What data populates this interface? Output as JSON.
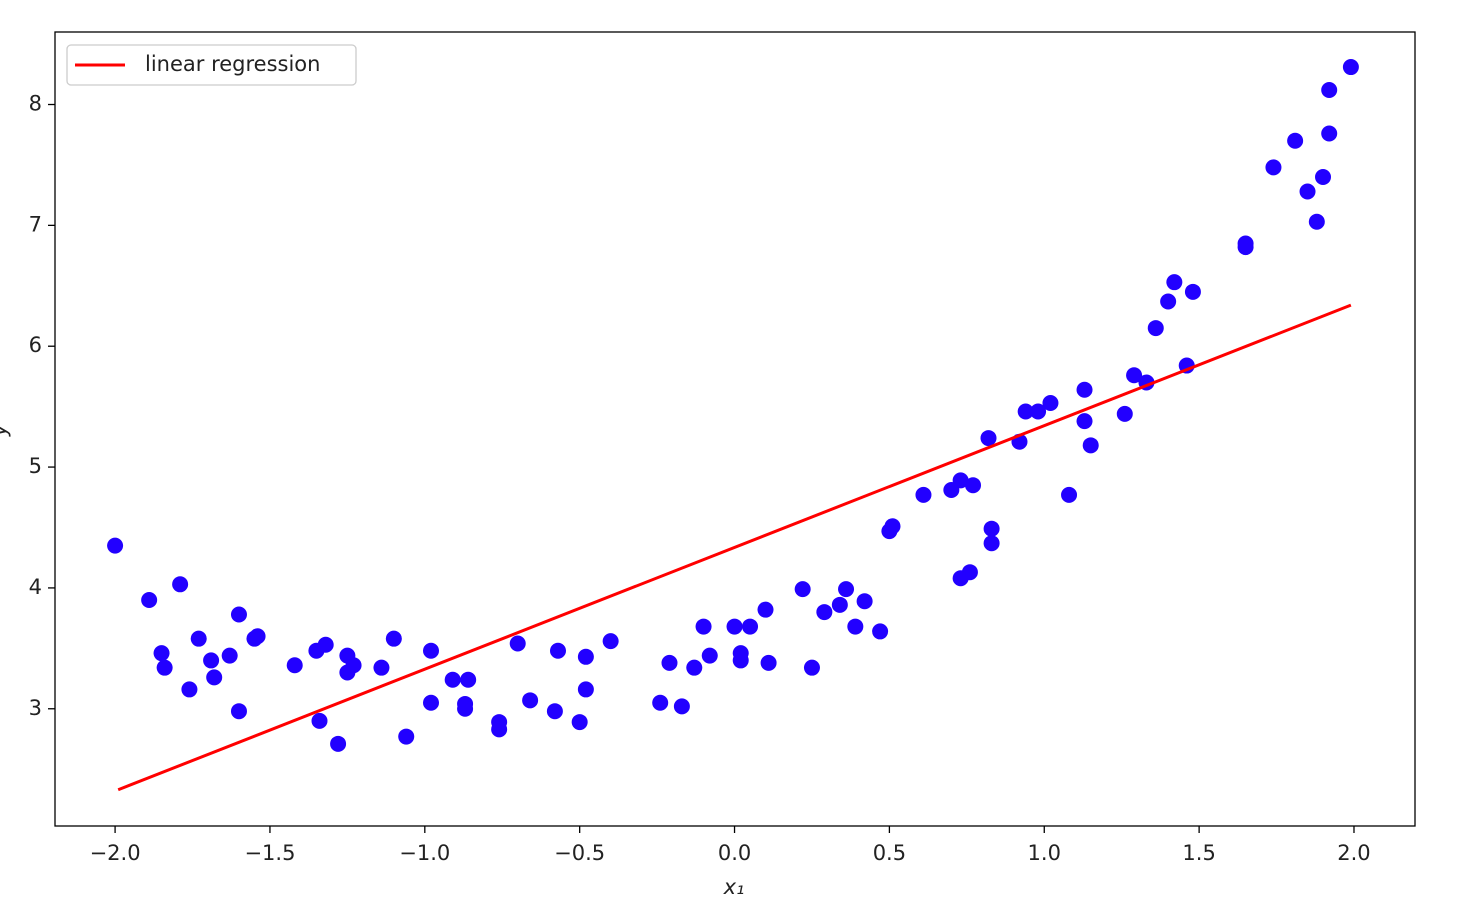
{
  "chart_data": {
    "type": "scatter",
    "xlabel": "x₁",
    "ylabel": "y",
    "xlim": [
      -2.194,
      2.197
    ],
    "ylim": [
      2.03,
      8.6
    ],
    "xticks": [
      {
        "value": -2.0,
        "label": "−2.0"
      },
      {
        "value": -1.5,
        "label": "−1.5"
      },
      {
        "value": -1.0,
        "label": "−1.0"
      },
      {
        "value": -0.5,
        "label": "−0.5"
      },
      {
        "value": 0.0,
        "label": "0.0"
      },
      {
        "value": 0.5,
        "label": "0.5"
      },
      {
        "value": 1.0,
        "label": "1.0"
      },
      {
        "value": 1.5,
        "label": "1.5"
      },
      {
        "value": 2.0,
        "label": "2.0"
      }
    ],
    "yticks": [
      3,
      4,
      5,
      6,
      7,
      8
    ],
    "legend": "upper left",
    "series": [
      {
        "name": "linear regression",
        "type": "line",
        "color": "#ff0000",
        "x": [
          -1.99,
          1.99
        ],
        "values": [
          2.33,
          6.34
        ]
      },
      {
        "type": "scatter",
        "color": "#2200ff",
        "x": [
          -2.0,
          -1.89,
          -1.79,
          -1.85,
          -1.84,
          -1.76,
          -1.73,
          -1.69,
          -1.68,
          -1.63,
          -1.6,
          -1.6,
          -1.55,
          -1.54,
          -1.42,
          -1.35,
          -1.32,
          -1.34,
          -1.28,
          -1.25,
          -1.25,
          -1.23,
          -1.14,
          -1.1,
          -1.06,
          -0.98,
          -0.98,
          -0.91,
          -0.86,
          -0.87,
          -0.87,
          -0.76,
          -0.76,
          -0.7,
          -0.66,
          -0.58,
          -0.57,
          -0.5,
          -0.48,
          -0.48,
          -0.4,
          -0.24,
          -0.21,
          -0.17,
          -0.13,
          -0.1,
          -0.08,
          0.0,
          0.02,
          0.02,
          0.05,
          0.1,
          0.11,
          0.22,
          0.25,
          0.29,
          0.34,
          0.36,
          0.39,
          0.42,
          0.47,
          0.5,
          0.51,
          0.61,
          0.7,
          0.73,
          0.77,
          0.73,
          0.76,
          0.82,
          0.83,
          0.83,
          0.92,
          0.94,
          0.98,
          1.02,
          1.08,
          1.13,
          1.13,
          1.15,
          1.26,
          1.29,
          1.33,
          1.36,
          1.4,
          1.42,
          1.46,
          1.48,
          1.65,
          1.65,
          1.74,
          1.81,
          1.85,
          1.88,
          1.9,
          1.92,
          1.92,
          1.99
        ],
        "values": [
          4.35,
          3.9,
          4.03,
          3.46,
          3.34,
          3.16,
          3.58,
          3.4,
          3.26,
          3.44,
          3.78,
          2.98,
          3.58,
          3.6,
          3.36,
          3.48,
          3.53,
          2.9,
          2.71,
          3.44,
          3.3,
          3.36,
          3.34,
          3.58,
          2.77,
          3.48,
          3.05,
          3.24,
          3.24,
          3.04,
          3.0,
          2.89,
          2.83,
          3.54,
          3.07,
          2.98,
          3.48,
          2.89,
          3.16,
          3.43,
          3.56,
          3.05,
          3.38,
          3.02,
          3.34,
          3.68,
          3.44,
          3.68,
          3.46,
          3.4,
          3.68,
          3.82,
          3.38,
          3.99,
          3.34,
          3.8,
          3.86,
          3.99,
          3.68,
          3.89,
          3.64,
          4.47,
          4.51,
          4.77,
          4.81,
          4.89,
          4.85,
          4.08,
          4.13,
          5.24,
          4.49,
          4.37,
          5.21,
          5.46,
          5.46,
          5.53,
          4.77,
          5.64,
          5.38,
          5.18,
          5.44,
          5.76,
          5.7,
          6.15,
          6.37,
          6.53,
          5.84,
          6.45,
          6.85,
          6.82,
          7.48,
          7.7,
          7.28,
          7.03,
          7.4,
          7.76,
          8.12,
          8.31
        ]
      }
    ]
  }
}
